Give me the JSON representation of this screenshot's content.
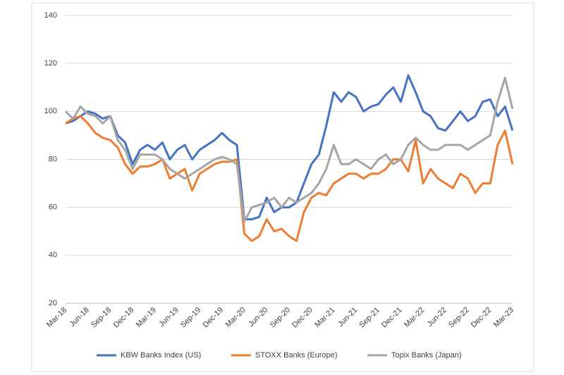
{
  "chart_data": {
    "type": "line",
    "categories": [
      "Mar-18",
      null,
      null,
      "Jun-18",
      null,
      null,
      "Sep-18",
      null,
      null,
      "Dec-18",
      null,
      null,
      "Mar-19",
      null,
      null,
      "Jun-19",
      null,
      null,
      "Sep-19",
      null,
      null,
      "Dec-19",
      null,
      null,
      "Mar-20",
      null,
      null,
      "Jun-20",
      null,
      null,
      "Sep-20",
      null,
      null,
      "Dec-20",
      null,
      null,
      "Mar-21",
      null,
      null,
      "Jun-21",
      null,
      null,
      "Sep-21",
      null,
      null,
      "Dec-21",
      null,
      null,
      "Mar-22",
      null,
      null,
      "Jun-22",
      null,
      null,
      "Sep-22",
      null,
      null,
      "Dec-22",
      null,
      null,
      "Mar-23"
    ],
    "series": [
      {
        "name": "KBW Banks Index (US)",
        "color": "#4472c4",
        "values": [
          95,
          96,
          98,
          100,
          99,
          97,
          98,
          90,
          87,
          78,
          84,
          86,
          84,
          87,
          80,
          84,
          86,
          80,
          84,
          86,
          88,
          91,
          88,
          86,
          55,
          55,
          56,
          64,
          58,
          60,
          60,
          62,
          70,
          78,
          82,
          94,
          108,
          104,
          108,
          106,
          100,
          102,
          103,
          107,
          110,
          104,
          115,
          108,
          100,
          98,
          93,
          92,
          96,
          100,
          96,
          98,
          104,
          105,
          98,
          102,
          92
        ]
      },
      {
        "name": "STOXX Banks (Europe)",
        "color": "#ed7d31",
        "values": [
          95,
          97,
          98,
          95,
          91,
          89,
          88,
          85,
          78,
          74,
          77,
          77,
          78,
          80,
          72,
          74,
          76,
          67,
          74,
          76,
          78,
          79,
          79,
          80,
          49,
          46,
          48,
          55,
          50,
          51,
          48,
          46,
          58,
          64,
          66,
          65,
          70,
          72,
          74,
          74,
          72,
          74,
          74,
          76,
          80,
          80,
          75,
          88,
          70,
          76,
          72,
          70,
          68,
          74,
          72,
          66,
          70,
          70,
          86,
          92,
          78
        ]
      },
      {
        "name": "Topix Banks (Japan)",
        "color": "#a5a5a5",
        "values": [
          100,
          97,
          102,
          99,
          98,
          95,
          98,
          88,
          84,
          76,
          82,
          82,
          82,
          80,
          76,
          74,
          72,
          74,
          76,
          78,
          80,
          81,
          80,
          78,
          54,
          60,
          61,
          62,
          64,
          60,
          64,
          62,
          64,
          66,
          70,
          76,
          86,
          78,
          78,
          80,
          78,
          76,
          80,
          82,
          78,
          80,
          86,
          89,
          86,
          84,
          84,
          86,
          86,
          86,
          84,
          86,
          88,
          90,
          104,
          114,
          101
        ]
      }
    ],
    "ylim": [
      20,
      140
    ],
    "yticks": [
      20,
      40,
      60,
      80,
      100,
      120,
      140
    ],
    "grid": true,
    "legend": "bottom"
  }
}
